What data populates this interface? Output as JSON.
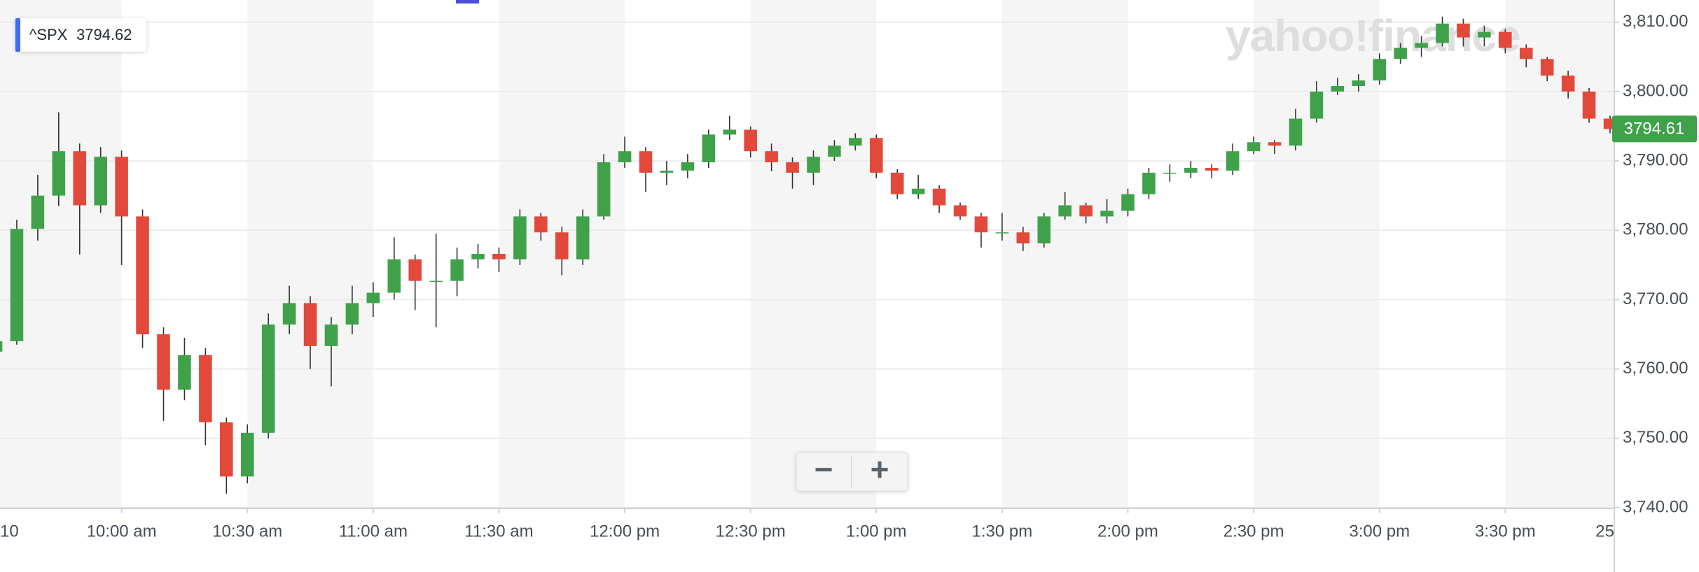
{
  "chart_data": {
    "type": "candlestick",
    "symbol": "^SPX",
    "symbol_price": 3794.62,
    "last_price": 3794.61,
    "watermark": "yahoo!finance",
    "controls": {
      "zoom_out": "−",
      "zoom_in": "+"
    },
    "up_color": "#3fa24a",
    "down_color": "#e3493a",
    "grid": true,
    "x": [
      "9:30 am",
      "9:35 am",
      "9:40 am",
      "9:45 am",
      "9:50 am",
      "9:55 am",
      "10:00 am",
      "10:05 am",
      "10:10 am",
      "10:15 am",
      "10:20 am",
      "10:25 am",
      "10:30 am",
      "10:35 am",
      "10:40 am",
      "10:45 am",
      "10:50 am",
      "10:55 am",
      "11:00 am",
      "11:05 am",
      "11:10 am",
      "11:15 am",
      "11:20 am",
      "11:25 am",
      "11:30 am",
      "11:35 am",
      "11:40 am",
      "11:45 am",
      "11:50 am",
      "11:55 am",
      "12:00 pm",
      "12:05 pm",
      "12:10 pm",
      "12:15 pm",
      "12:20 pm",
      "12:25 pm",
      "12:30 pm",
      "12:35 pm",
      "12:40 pm",
      "12:45 pm",
      "12:50 pm",
      "12:55 pm",
      "1:00 pm",
      "1:05 pm",
      "1:10 pm",
      "1:15 pm",
      "1:20 pm",
      "1:25 pm",
      "1:30 pm",
      "1:35 pm",
      "1:40 pm",
      "1:45 pm",
      "1:50 pm",
      "1:55 pm",
      "2:00 pm",
      "2:05 pm",
      "2:10 pm",
      "2:15 pm",
      "2:20 pm",
      "2:25 pm",
      "2:30 pm",
      "2:35 pm",
      "2:40 pm",
      "2:45 pm",
      "2:50 pm",
      "2:55 pm",
      "3:00 pm",
      "3:05 pm",
      "3:10 pm",
      "3:15 pm",
      "3:20 pm",
      "3:25 pm",
      "3:30 pm",
      "3:35 pm",
      "3:40 pm",
      "3:45 pm",
      "3:50 pm",
      "3:55 pm"
    ],
    "open": [
      3762.5,
      3764.0,
      3780.2,
      3785.0,
      3791.4,
      3783.6,
      3790.6,
      3782.0,
      3765.0,
      3757.0,
      3762.0,
      3752.3,
      3744.5,
      3750.8,
      3766.4,
      3769.5,
      3763.3,
      3766.4,
      3769.5,
      3771.0,
      3775.8,
      3772.7,
      3772.7,
      3775.8,
      3776.6,
      3775.8,
      3782.0,
      3779.7,
      3775.8,
      3782.0,
      3789.8,
      3791.4,
      3788.3,
      3788.6,
      3789.8,
      3793.8,
      3794.5,
      3791.4,
      3789.8,
      3788.3,
      3790.6,
      3792.2,
      3793.3,
      3788.3,
      3785.2,
      3786.0,
      3783.6,
      3782.0,
      3779.7,
      3779.7,
      3778.1,
      3782.0,
      3783.6,
      3782.0,
      3782.8,
      3785.2,
      3788.3,
      3788.3,
      3789.0,
      3788.6,
      3791.4,
      3792.7,
      3792.2,
      3796.1,
      3800.0,
      3800.8,
      3801.6,
      3804.7,
      3806.3,
      3807.0,
      3809.8,
      3807.8,
      3808.6,
      3806.3,
      3804.7,
      3802.3,
      3800.0,
      3796.1
    ],
    "high": [
      3766.0,
      3781.5,
      3788.0,
      3797.0,
      3792.5,
      3792.0,
      3791.5,
      3783.0,
      3766.0,
      3764.5,
      3763.0,
      3753.0,
      3752.0,
      3768.0,
      3772.0,
      3770.5,
      3767.5,
      3772.0,
      3772.5,
      3779.0,
      3776.5,
      3779.5,
      3777.5,
      3778.0,
      3777.5,
      3783.0,
      3782.5,
      3780.5,
      3783.0,
      3791.0,
      3793.5,
      3792.0,
      3790.0,
      3791.0,
      3794.5,
      3796.5,
      3795.0,
      3792.5,
      3790.5,
      3791.5,
      3793.0,
      3794.0,
      3793.8,
      3788.8,
      3788.0,
      3786.5,
      3784.0,
      3782.5,
      3782.5,
      3780.5,
      3782.5,
      3785.5,
      3784.0,
      3784.5,
      3786.0,
      3789.0,
      3789.5,
      3790.0,
      3789.5,
      3792.5,
      3793.5,
      3793.0,
      3797.5,
      3801.5,
      3802.0,
      3802.5,
      3805.5,
      3807.0,
      3808.0,
      3810.8,
      3810.5,
      3809.5,
      3809.0,
      3806.8,
      3805.0,
      3803.0,
      3800.5,
      3796.5
    ],
    "low": [
      3761.5,
      3763.5,
      3778.5,
      3783.5,
      3776.5,
      3782.5,
      3775.0,
      3763.0,
      3752.5,
      3755.5,
      3749.0,
      3742.0,
      3743.5,
      3750.0,
      3765.0,
      3760.0,
      3757.5,
      3765.0,
      3767.5,
      3770.0,
      3768.5,
      3766.0,
      3770.5,
      3774.5,
      3774.0,
      3775.0,
      3778.5,
      3773.5,
      3775.0,
      3781.5,
      3789.0,
      3785.5,
      3786.5,
      3787.5,
      3789.0,
      3793.0,
      3790.5,
      3788.5,
      3786.0,
      3786.5,
      3790.0,
      3791.5,
      3787.5,
      3784.5,
      3784.5,
      3782.5,
      3781.5,
      3777.5,
      3778.5,
      3777.0,
      3777.5,
      3781.5,
      3781.0,
      3781.0,
      3782.0,
      3784.5,
      3787.0,
      3787.5,
      3787.5,
      3788.0,
      3791.0,
      3791.0,
      3791.5,
      3795.5,
      3799.5,
      3800.0,
      3801.0,
      3804.0,
      3805.0,
      3806.5,
      3806.5,
      3806.5,
      3805.5,
      3803.5,
      3801.5,
      3799.0,
      3795.5,
      3794.0
    ],
    "close": [
      3764.0,
      3780.2,
      3785.0,
      3791.4,
      3783.6,
      3790.6,
      3782.0,
      3765.0,
      3757.0,
      3762.0,
      3752.3,
      3744.5,
      3750.8,
      3766.4,
      3769.5,
      3763.3,
      3766.4,
      3769.5,
      3771.0,
      3775.8,
      3772.7,
      3772.7,
      3775.8,
      3776.6,
      3775.8,
      3782.0,
      3779.7,
      3775.8,
      3782.0,
      3789.8,
      3791.4,
      3788.3,
      3788.6,
      3789.8,
      3793.8,
      3794.5,
      3791.4,
      3789.8,
      3788.3,
      3790.6,
      3792.2,
      3793.3,
      3788.3,
      3785.2,
      3786.0,
      3783.6,
      3782.0,
      3779.7,
      3779.7,
      3778.1,
      3782.0,
      3783.6,
      3782.0,
      3782.8,
      3785.2,
      3788.3,
      3788.3,
      3789.0,
      3788.6,
      3791.4,
      3792.7,
      3792.2,
      3796.1,
      3800.0,
      3800.8,
      3801.6,
      3804.7,
      3806.3,
      3807.0,
      3809.8,
      3807.8,
      3808.6,
      3806.3,
      3804.7,
      3802.3,
      3800.0,
      3796.1,
      3794.6
    ],
    "xlim": [
      "9:31 am",
      "3:56 pm"
    ],
    "xticks": [
      {
        "value": "9:30 am",
        "label": "10"
      },
      "10:00 am",
      "10:30 am",
      "11:00 am",
      "11:30 am",
      "12:00 pm",
      "12:30 pm",
      "1:00 pm",
      "1:30 pm",
      "2:00 pm",
      "2:30 pm",
      "3:00 pm",
      "3:30 pm",
      {
        "value": "4:00 pm",
        "label": "25"
      }
    ],
    "ylim": [
      3739.9,
      3813.2
    ],
    "yticks": [
      {
        "value": 3740,
        "label": "3,740.00"
      },
      {
        "value": 3750,
        "label": "3,750.00"
      },
      {
        "value": 3760,
        "label": "3,760.00"
      },
      {
        "value": 3770,
        "label": "3,770.00"
      },
      {
        "value": 3780,
        "label": "3,780.00"
      },
      {
        "value": 3790,
        "label": "3,790.00"
      },
      {
        "value": 3800,
        "label": "3,800.00"
      },
      {
        "value": 3810,
        "label": "3,810.00"
      }
    ]
  }
}
